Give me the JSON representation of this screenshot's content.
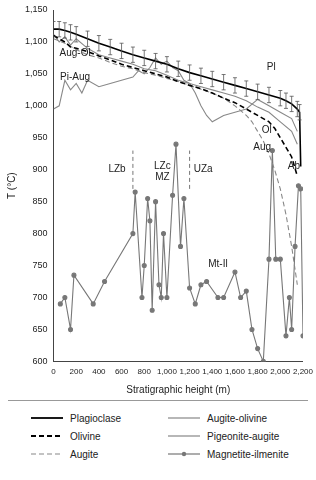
{
  "chart_data": {
    "type": "line",
    "x_label": "Stratigraphic height (m)",
    "y_label": "T (°C)",
    "xlim": [
      0,
      2200
    ],
    "xticks": [
      0,
      200,
      400,
      600,
      800,
      1000,
      1200,
      1400,
      1600,
      1800,
      2000,
      2200
    ],
    "ylim": [
      600,
      1150
    ],
    "yticks": [
      600,
      650,
      700,
      750,
      800,
      850,
      900,
      950,
      1000,
      1050,
      1100,
      1150
    ],
    "grid": false,
    "series": [
      {
        "name": "Plagioclase",
        "color": "#000000",
        "line_style": "solid",
        "marker": "none",
        "x": [
          0,
          50,
          100,
          150,
          200,
          300,
          400,
          500,
          600,
          700,
          800,
          900,
          1000,
          1100,
          1200,
          1300,
          1400,
          1500,
          1600,
          1700,
          1800,
          1900,
          2000,
          2050,
          2100,
          2150,
          2170,
          2180
        ],
        "values": [
          1120,
          1120,
          1118,
          1115,
          1112,
          1105,
          1098,
          1092,
          1086,
          1080,
          1075,
          1070,
          1065,
          1058,
          1052,
          1047,
          1042,
          1037,
          1032,
          1027,
          1022,
          1017,
          1012,
          1008,
          1003,
          995,
          990,
          905
        ],
        "errors": [
          12,
          12,
          12,
          12,
          12,
          12,
          12,
          12,
          12,
          12,
          12,
          12,
          12,
          12,
          12,
          12,
          12,
          12,
          12,
          12,
          12,
          12,
          12,
          12,
          12,
          12,
          12,
          null
        ]
      },
      {
        "name": "Olivine",
        "color": "#000000",
        "line_style": "dashed",
        "marker": "none",
        "x": [
          0,
          50,
          100,
          150,
          200,
          300,
          400,
          500,
          600,
          700,
          800,
          900,
          1000,
          1100,
          1200,
          1300,
          1400,
          1500,
          1600,
          1700,
          1800,
          1900,
          1950,
          2000,
          2050,
          2100,
          2150
        ],
        "values": [
          1110,
          1105,
          1100,
          1092,
          1090,
          1085,
          1078,
          1072,
          1065,
          1060,
          1055,
          1050,
          1045,
          1038,
          1032,
          1027,
          1020,
          1012,
          1005,
          995,
          985,
          975,
          965,
          950,
          935,
          920,
          890
        ]
      },
      {
        "name": "Augite",
        "color": "#888888",
        "line_style": "dashed",
        "marker": "none",
        "x": [
          0,
          100,
          200,
          300,
          400,
          500,
          600,
          700,
          800,
          900,
          1000,
          1100,
          1200,
          1300,
          1400,
          1500,
          1600,
          1700,
          1750,
          1800,
          1850,
          1900,
          1950,
          2000,
          2050,
          2100,
          2150
        ],
        "values": [
          1105,
          1098,
          1088,
          1080,
          1075,
          1068,
          1062,
          1058,
          1052,
          1048,
          1043,
          1038,
          1032,
          1026,
          1020,
          1012,
          1000,
          985,
          975,
          960,
          945,
          925,
          900,
          870,
          830,
          780,
          720
        ]
      },
      {
        "name": "Augite-olivine",
        "color": "#888888",
        "line_style": "solid",
        "marker": "none",
        "x": [
          0,
          50,
          100,
          150,
          200,
          300,
          400,
          500,
          600,
          700,
          800,
          900,
          1000,
          1100,
          1200,
          1300,
          1400,
          1500,
          1600,
          1700,
          1800,
          1900,
          2000,
          2100,
          2150
        ],
        "values": [
          1112,
          1100,
          1108,
          1095,
          1105,
          1090,
          1080,
          1075,
          1070,
          1065,
          1058,
          1055,
          1048,
          1040,
          1035,
          1030,
          1025,
          1020,
          1015,
          1008,
          998,
          990,
          975,
          960,
          940
        ]
      },
      {
        "name": "Pigeonite-augite",
        "color": "#888888",
        "line_style": "solid",
        "marker": "none",
        "x": [
          0,
          50,
          100,
          150,
          200,
          250,
          300,
          400,
          500,
          600,
          700,
          750,
          800,
          850,
          900,
          950,
          1000,
          1050,
          1100,
          1150,
          1200,
          1250,
          1300,
          1350,
          1400,
          1500,
          1600,
          1700,
          1800,
          1900,
          2000,
          2100,
          2150
        ],
        "values": [
          995,
          1000,
          1040,
          1025,
          1035,
          1020,
          1040,
          1030,
          1035,
          1040,
          1045,
          1055,
          1050,
          1060,
          1075,
          1065,
          1070,
          1060,
          1055,
          1040,
          1035,
          1020,
          1000,
          985,
          975,
          985,
          990,
          995,
          1010,
          1000,
          990,
          980,
          960
        ]
      },
      {
        "name": "Magnetite-ilmenite",
        "color": "#777777",
        "line_style": "solid",
        "marker": "circle",
        "x": [
          60,
          100,
          150,
          180,
          350,
          450,
          700,
          720,
          780,
          800,
          830,
          850,
          870,
          900,
          930,
          950,
          970,
          1000,
          1050,
          1080,
          1120,
          1150,
          1200,
          1250,
          1300,
          1350,
          1450,
          1500,
          1600,
          1650,
          1700,
          1750,
          1800,
          1850,
          1900,
          1930,
          1960,
          2000,
          2050,
          2080,
          2100,
          2130,
          2160,
          2180,
          2200
        ],
        "values": [
          690,
          700,
          650,
          735,
          690,
          725,
          800,
          865,
          700,
          750,
          855,
          820,
          680,
          850,
          720,
          700,
          800,
          700,
          860,
          940,
          780,
          855,
          715,
          690,
          720,
          725,
          700,
          700,
          740,
          700,
          710,
          650,
          620,
          600,
          760,
          930,
          760,
          760,
          640,
          700,
          650,
          780,
          875,
          870,
          640
        ]
      }
    ],
    "annotations": [
      {
        "text": "Aug-Ol",
        "x": 190,
        "y": 1083
      },
      {
        "text": "Pi-Aug",
        "x": 190,
        "y": 1045
      },
      {
        "text": "Pl",
        "x": 1920,
        "y": 1060
      },
      {
        "text": "Ol",
        "x": 1880,
        "y": 962
      },
      {
        "text": "Aug",
        "x": 1840,
        "y": 935
      },
      {
        "text": "Ab",
        "x": 2120,
        "y": 905
      },
      {
        "text": "Mt-Il",
        "x": 1450,
        "y": 752
      },
      {
        "text": "LZb",
        "x": 560,
        "y": 900
      },
      {
        "text": "LZc",
        "x": 960,
        "y": 905
      },
      {
        "text": "MZ",
        "x": 960,
        "y": 888
      },
      {
        "text": "UZa",
        "x": 1320,
        "y": 900
      }
    ],
    "zone_boundaries": [
      {
        "x": 700,
        "ylim": [
          870,
          930
        ]
      },
      {
        "x": 1200,
        "ylim": [
          870,
          930
        ]
      }
    ]
  }
}
